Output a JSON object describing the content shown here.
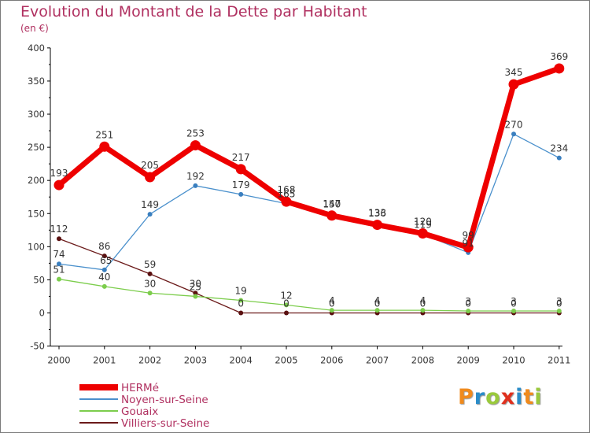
{
  "title": "Evolution du Montant de la Dette par Habitant",
  "unit": "(en €)",
  "logo": {
    "text": "Proxiti",
    "colors": [
      "#f08a1c",
      "#2a8cc8",
      "#9ac93c",
      "#e0301e",
      "#2a8cc8",
      "#f08a1c",
      "#9ac93c"
    ]
  },
  "chart_data": {
    "type": "line",
    "x": [
      "2000",
      "2001",
      "2002",
      "2003",
      "2004",
      "2005",
      "2006",
      "2007",
      "2008",
      "2009",
      "2010",
      "2011"
    ],
    "ylim": [
      -50,
      400
    ],
    "yticks": [
      -50,
      0,
      50,
      100,
      150,
      200,
      250,
      300,
      350,
      400
    ],
    "grid": false,
    "legend_position": "bottom-left",
    "series": [
      {
        "name": "HERMé",
        "color": "#ee0000",
        "width": 7,
        "values": [
          193,
          251,
          205,
          253,
          217,
          168,
          147,
          133,
          120,
          99,
          345,
          369
        ],
        "labels": [
          "193",
          "251",
          "205",
          "253",
          "217",
          "168",
          "147",
          "133",
          "120",
          "99",
          "345",
          "369"
        ]
      },
      {
        "name": "Noyen-sur-Seine",
        "color": "#4a90cc",
        "width": 1.3,
        "values": [
          74,
          65,
          149,
          192,
          179,
          165,
          150,
          136,
          119,
          91,
          270,
          234
        ],
        "labels": [
          "74",
          "65",
          "149",
          "192",
          "179",
          "165",
          "150",
          "136",
          "119",
          "91",
          "270",
          "234"
        ]
      },
      {
        "name": "Gouaix",
        "color": "#7ccd4c",
        "width": 1.3,
        "values": [
          51,
          40,
          30,
          25,
          19,
          12,
          4,
          4,
          4,
          3,
          3,
          3
        ],
        "labels": [
          "51",
          "40",
          "30",
          "25",
          "19",
          "12",
          "4",
          "4",
          "4",
          "3",
          "3",
          "3"
        ]
      },
      {
        "name": "Villiers-sur-Seine",
        "color": "#6b1a1a",
        "width": 1.3,
        "values": [
          112,
          86,
          59,
          30,
          0,
          0,
          0,
          0,
          0,
          0,
          0,
          0
        ],
        "labels": [
          "112",
          "86",
          "59",
          "30",
          "0",
          "0",
          "0",
          "0",
          "0",
          "0",
          "0",
          "0"
        ]
      }
    ]
  }
}
